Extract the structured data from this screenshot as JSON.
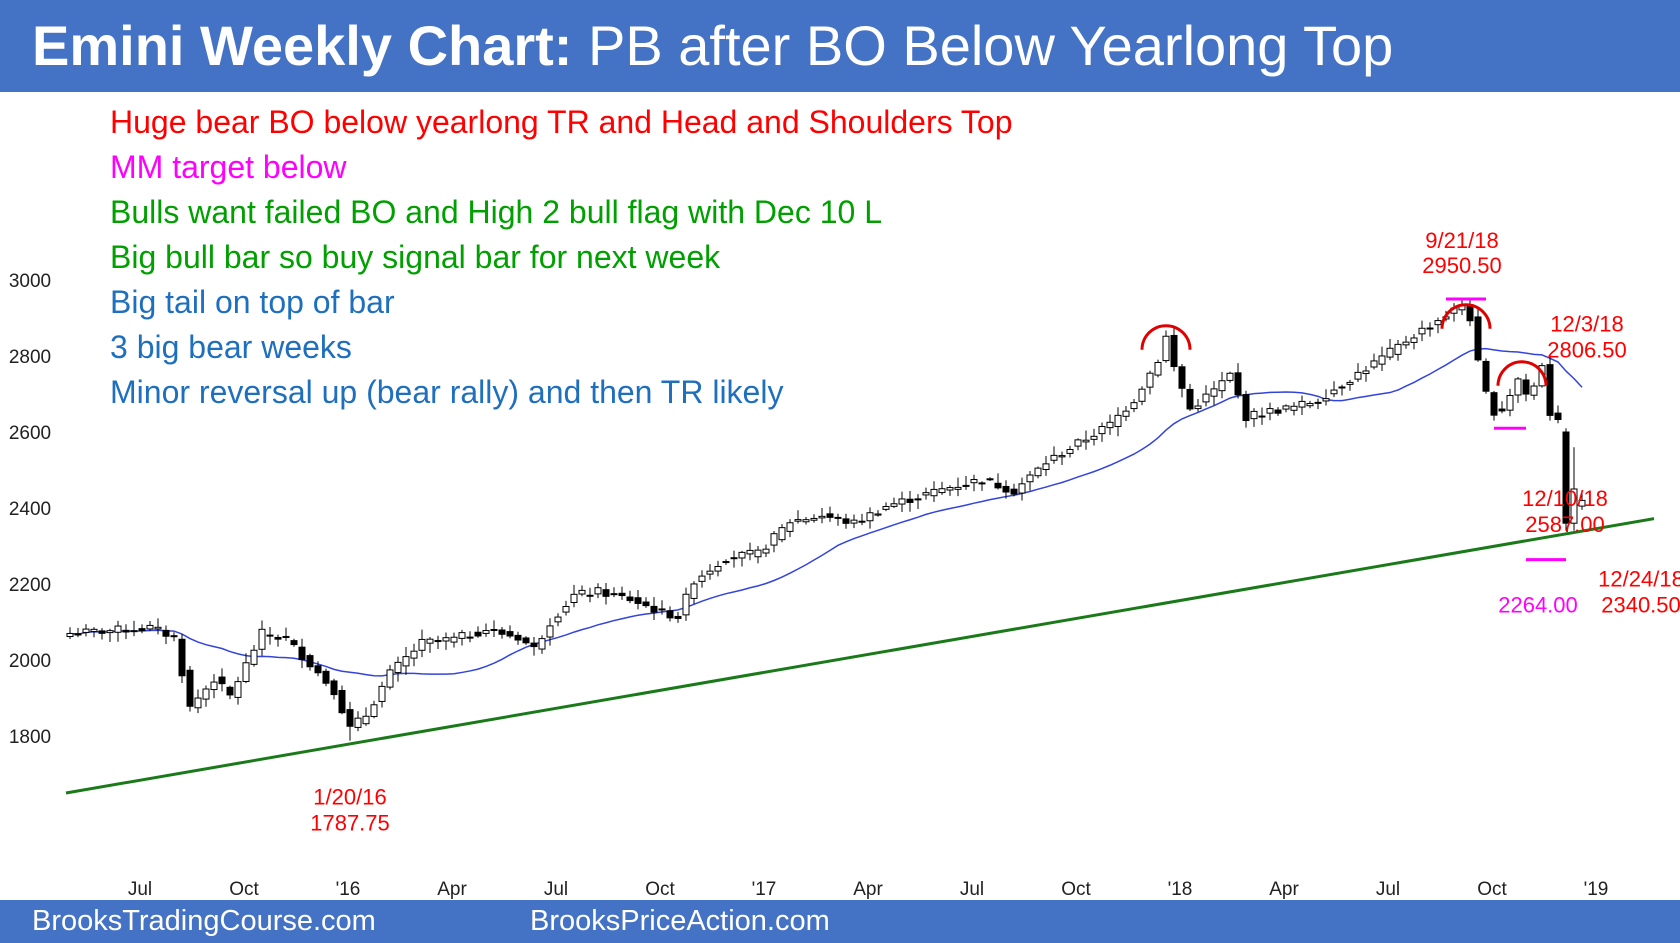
{
  "header": {
    "title_bold": "Emini Weekly Chart:",
    "title_rest": " PB after BO Below Yearlong Top"
  },
  "notes": [
    {
      "text": "Huge bear BO below yearlong TR and Head and Shoulders Top",
      "color": "#ff0000"
    },
    {
      "text": "MM target below",
      "color": "#ff00ff"
    },
    {
      "text": "Bulls want failed BO and High 2 bull flag with Dec 10 L",
      "color": "#00a000"
    },
    {
      "text": "Big bull bar so buy signal bar for next week",
      "color": "#00a000"
    },
    {
      "text": "Big tail on top of bar",
      "color": "#1f6fbf"
    },
    {
      "text": "3 big bear weeks",
      "color": "#1f6fbf"
    },
    {
      "text": "Minor reversal up (bear rally) and then TR likely",
      "color": "#1f6fbf"
    }
  ],
  "footer": {
    "left": "BrooksTradingCourse.com",
    "right": "BrooksPriceAction.com"
  },
  "chart_data": {
    "type": "candlestick",
    "title": "Emini Weekly Chart: PB after BO Below Yearlong Top",
    "ylim": [
      1640,
      3020
    ],
    "y_ticks": [
      1800,
      2000,
      2200,
      2400,
      2600,
      2800,
      3000
    ],
    "y_tick_labels": [
      "1800",
      "2000",
      "2200",
      "2400",
      "2600",
      "2800",
      "3000"
    ],
    "x_ticks": [
      "Jul",
      "Oct",
      "'16",
      "Apr",
      "Jul",
      "Oct",
      "'17",
      "Apr",
      "Jul",
      "Oct",
      "'18",
      "Apr",
      "Jul",
      "Oct",
      "'19"
    ],
    "x_tick_week": [
      7,
      20,
      33,
      46,
      59,
      72,
      85,
      98,
      111,
      124,
      137,
      150,
      163,
      176,
      189
    ],
    "trendline": {
      "color": "#1a7a1a",
      "start": [
        0,
        1650
      ],
      "end": [
        198,
        2372
      ]
    },
    "moving_average_color": "#3344dd",
    "colors": {
      "bull": "#ffffff",
      "bear": "#000000",
      "annotation": "#ff0000",
      "target": "#ff00ff"
    },
    "waypoints": [
      [
        0,
        2070
      ],
      [
        10,
        2085
      ],
      [
        13,
        2060
      ],
      [
        15,
        1875
      ],
      [
        18,
        1950
      ],
      [
        20,
        1905
      ],
      [
        24,
        2070
      ],
      [
        27,
        2055
      ],
      [
        30,
        1990
      ],
      [
        33,
        1920
      ],
      [
        35,
        1820
      ],
      [
        37,
        1855
      ],
      [
        40,
        1965
      ],
      [
        44,
        2045
      ],
      [
        48,
        2055
      ],
      [
        52,
        2080
      ],
      [
        56,
        2060
      ],
      [
        58,
        2030
      ],
      [
        60,
        2100
      ],
      [
        63,
        2170
      ],
      [
        66,
        2180
      ],
      [
        70,
        2160
      ],
      [
        74,
        2125
      ],
      [
        76,
        2115
      ],
      [
        78,
        2210
      ],
      [
        82,
        2270
      ],
      [
        86,
        2280
      ],
      [
        90,
        2365
      ],
      [
        94,
        2380
      ],
      [
        98,
        2360
      ],
      [
        102,
        2405
      ],
      [
        106,
        2430
      ],
      [
        110,
        2455
      ],
      [
        114,
        2475
      ],
      [
        118,
        2445
      ],
      [
        122,
        2520
      ],
      [
        126,
        2570
      ],
      [
        130,
        2620
      ],
      [
        133,
        2685
      ],
      [
        136,
        2790
      ],
      [
        137,
        2850
      ],
      [
        138,
        2770
      ],
      [
        140,
        2660
      ],
      [
        143,
        2710
      ],
      [
        145,
        2750
      ],
      [
        147,
        2640
      ],
      [
        150,
        2655
      ],
      [
        153,
        2665
      ],
      [
        156,
        2685
      ],
      [
        160,
        2740
      ],
      [
        164,
        2795
      ],
      [
        168,
        2855
      ],
      [
        171,
        2895
      ],
      [
        173,
        2920
      ],
      [
        174,
        2935
      ],
      [
        175,
        2900
      ],
      [
        176,
        2780
      ],
      [
        177,
        2700
      ],
      [
        178,
        2655
      ],
      [
        179,
        2660
      ],
      [
        180,
        2700
      ],
      [
        181,
        2740
      ],
      [
        182,
        2700
      ],
      [
        183,
        2720
      ],
      [
        184,
        2780
      ],
      [
        185,
        2650
      ],
      [
        186,
        2640
      ],
      [
        187,
        2600
      ],
      [
        188,
        2420
      ],
      [
        189,
        2400
      ]
    ],
    "annotations": [
      {
        "text": "1/20/16",
        "week": 35,
        "y_value": 1787.75,
        "color": "#ff0000"
      },
      {
        "text": "1787.75",
        "week": 35,
        "y_value": 1787.75,
        "color": "#ff0000"
      },
      {
        "text": "9/21/18",
        "week": 174,
        "y_value": 2950.5,
        "color": "#ff0000"
      },
      {
        "text": "2950.50",
        "week": 174,
        "y_value": 2950.5,
        "color": "#ff0000"
      },
      {
        "text": "12/3/18",
        "week": 184,
        "y_value": 2806.5,
        "color": "#ff0000"
      },
      {
        "text": "2806.50",
        "week": 184,
        "y_value": 2806.5,
        "color": "#ff0000"
      },
      {
        "text": "12/10/18",
        "week": 185,
        "y_value": 2587.0,
        "color": "#ff0000"
      },
      {
        "text": "2587.00",
        "week": 185,
        "y_value": 2587.0,
        "color": "#ff0000"
      },
      {
        "text": "12/24/18",
        "week": 187,
        "y_value": 2340.5,
        "color": "#ff0000"
      },
      {
        "text": "2340.50",
        "week": 187,
        "y_value": 2340.5,
        "color": "#ff0000"
      },
      {
        "text": "2264.00",
        "week": 185,
        "y_value": 2264.0,
        "color": "#ff00ff"
      }
    ],
    "arcs": [
      {
        "week": 137,
        "y_value": 2885
      },
      {
        "week": 174.5,
        "y_value": 2940
      },
      {
        "week": 181.5,
        "y_value": 2790
      }
    ],
    "target_lines": [
      {
        "y_value": 2950,
        "w1": 172,
        "w2": 177
      },
      {
        "y_value": 2610,
        "w1": 178,
        "w2": 182
      },
      {
        "y_value": 2264,
        "w1": 182,
        "w2": 187
      }
    ],
    "legend": "none",
    "grid": false
  }
}
